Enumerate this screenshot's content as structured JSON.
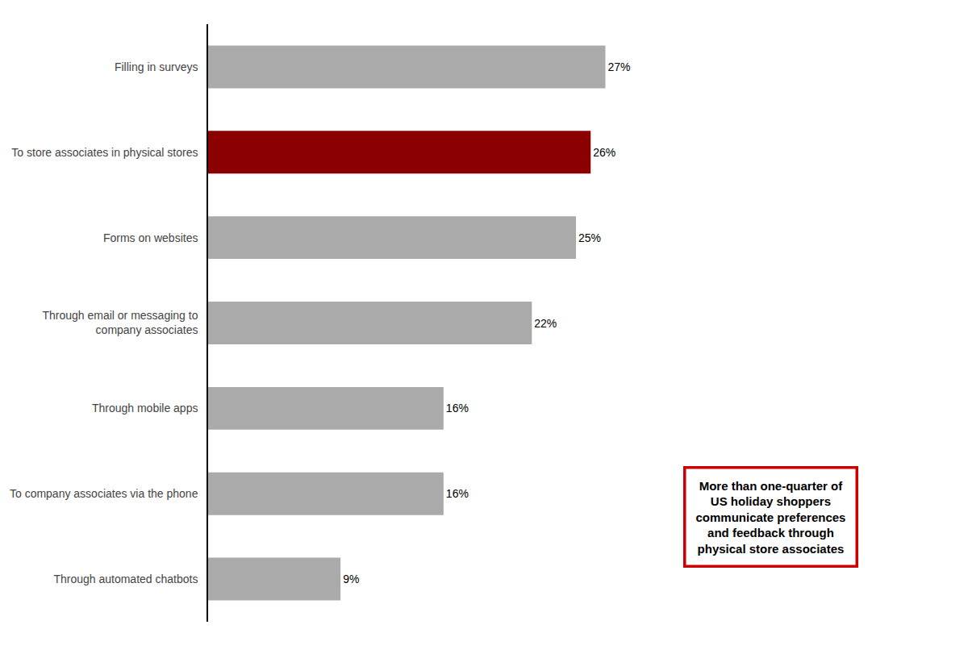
{
  "chart_data": {
    "type": "bar",
    "orientation": "horizontal",
    "categories": [
      "Through automated chatbots",
      "To company associates via the phone",
      "Through mobile apps",
      "Through email or messaging to\ncompany associates",
      "Forms on websites",
      "To store associates in physical stores",
      "Filling in surveys"
    ],
    "values": [
      9,
      16,
      16,
      22,
      25,
      26,
      27
    ],
    "value_labels": [
      "9%",
      "16%",
      "16%",
      "22%",
      "25%",
      "26%",
      "27%"
    ],
    "colors": [
      "#aaaaaa",
      "#aaaaaa",
      "#aaaaaa",
      "#aaaaaa",
      "#aaaaaa",
      "#8b0000",
      "#aaaaaa"
    ],
    "data_labels": true,
    "xlim": [
      0,
      50
    ],
    "tick_labels": "y",
    "grid": false,
    "annotations": [
      {
        "text": "More than one-quarter of\nUS holiday shoppers\ncommunicate preferences\nand feedback through\nphysical store associates",
        "color": "#cc0000"
      }
    ]
  }
}
